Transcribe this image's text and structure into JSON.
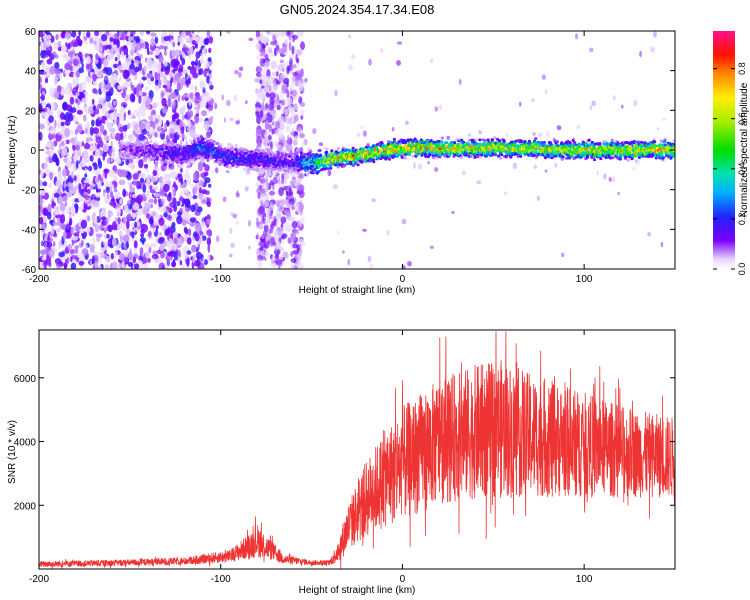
{
  "page_title": "GN05.2024.354.17.34.E08",
  "chart_data": [
    {
      "type": "heatmap",
      "title": "GN05.2024.354.17.34.E08",
      "xlabel": "Height of straight line (km)",
      "ylabel": "Frequency (Hz)",
      "xlim": [
        -200,
        150
      ],
      "ylim": [
        -60,
        60
      ],
      "xticks": [
        -200,
        -100,
        0,
        100
      ],
      "yticks": [
        -60,
        -40,
        -20,
        0,
        20,
        40,
        60
      ],
      "colorbar": {
        "label": "Normalized spectral amplitude",
        "range": [
          0,
          0.95
        ],
        "ticks": [
          0.0,
          0.2,
          0.4,
          0.6,
          0.8
        ],
        "tick_labels": [
          "0.0",
          "0.2",
          "0.4",
          "0.6",
          "0.8"
        ],
        "colormap": "rainbow (violet to red to magenta)"
      },
      "ridge": {
        "description": "Dominant frequency ridge",
        "x": [
          -150,
          -120,
          -110,
          -100,
          -80,
          -60,
          -50,
          -40,
          -20,
          0,
          20,
          50,
          100,
          150
        ],
        "frequency": [
          0,
          -2,
          2,
          -3,
          -5,
          -6,
          -7,
          -5,
          -2,
          1,
          1,
          1,
          0,
          0
        ],
        "peak_amplitude": [
          0.15,
          0.3,
          0.4,
          0.35,
          0.3,
          0.25,
          0.6,
          0.85,
          0.9,
          0.9,
          0.85,
          0.8,
          0.8,
          0.85
        ]
      },
      "noise_regions": [
        {
          "x_range": [
            -200,
            -105
          ],
          "density": "high"
        },
        {
          "x_range": [
            -80,
            -55
          ],
          "density": "medium"
        }
      ]
    },
    {
      "type": "line",
      "xlabel": "Height of straight line (km)",
      "ylabel": "SNR (10 * v/v)",
      "xlim": [
        -200,
        150
      ],
      "ylim": [
        0,
        7500
      ],
      "xticks": [
        -200,
        -100,
        0,
        100
      ],
      "yticks": [
        2000,
        4000,
        6000
      ],
      "series": [
        {
          "name": "SNR",
          "color": "#ee3333",
          "envelope_x": [
            -200,
            -150,
            -120,
            -95,
            -85,
            -80,
            -75,
            -65,
            -50,
            -40,
            -35,
            -30,
            -20,
            -10,
            0,
            20,
            40,
            55,
            70,
            100,
            130,
            150
          ],
          "envelope_mean": [
            150,
            200,
            250,
            400,
            700,
            900,
            700,
            300,
            200,
            200,
            600,
            1300,
            2200,
            2800,
            3300,
            4000,
            4300,
            4400,
            4200,
            3900,
            3600,
            3500
          ],
          "envelope_spread": [
            120,
            130,
            150,
            250,
            500,
            700,
            500,
            200,
            100,
            100,
            500,
            1000,
            1600,
            2000,
            2400,
            2600,
            2800,
            2900,
            2600,
            2200,
            1800,
            1700
          ]
        }
      ]
    }
  ]
}
